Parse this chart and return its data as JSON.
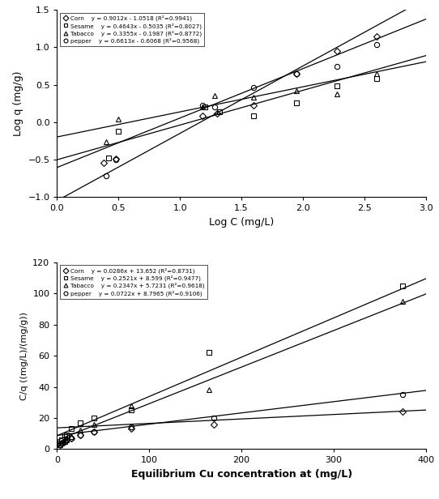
{
  "plot1": {
    "xlabel": "Log C (mg/L)",
    "ylabel": "Log q (mg/g)",
    "xlim": [
      0,
      3
    ],
    "ylim": [
      -1,
      1.5
    ],
    "xticks": [
      0,
      0.5,
      1,
      1.5,
      2,
      2.5,
      3
    ],
    "yticks": [
      -1,
      -0.5,
      0,
      0.5,
      1,
      1.5
    ],
    "series": [
      {
        "name": "Corn",
        "marker": "D",
        "label_eq": "y = 0.9012x - 1.0518 (R²=0.9941)",
        "slope": 0.9012,
        "intercept": -1.0518,
        "x_data": [
          0.38,
          0.48,
          1.18,
          1.3,
          1.6,
          1.95,
          2.28,
          2.6
        ],
        "y_data": [
          -0.55,
          -0.49,
          0.08,
          0.12,
          0.22,
          0.65,
          0.95,
          1.15
        ]
      },
      {
        "name": "Sesame",
        "marker": "s",
        "label_eq": "y = 0.4643x - 0.5035 (R²=0.8027)",
        "slope": 0.4643,
        "intercept": -0.5035,
        "x_data": [
          0.42,
          0.5,
          1.2,
          1.32,
          1.6,
          1.95,
          2.28,
          2.6
        ],
        "y_data": [
          -0.48,
          -0.12,
          0.2,
          0.14,
          0.08,
          0.26,
          0.49,
          0.58
        ]
      },
      {
        "name": "Tabacco",
        "marker": "^",
        "label_eq": "y = 0.3355x - 0.1987 (R²=0.8772)",
        "slope": 0.3355,
        "intercept": -0.1987,
        "x_data": [
          0.4,
          0.5,
          1.18,
          1.28,
          1.6,
          1.95,
          2.28,
          2.6
        ],
        "y_data": [
          -0.26,
          0.04,
          0.2,
          0.35,
          0.33,
          0.42,
          0.38,
          0.65
        ]
      },
      {
        "name": "pepper",
        "marker": "o",
        "label_eq": "y = 0.6613x - 0.6068 (R²=0.9568)",
        "slope": 0.6613,
        "intercept": -0.6068,
        "x_data": [
          0.4,
          0.48,
          1.18,
          1.28,
          1.6,
          1.95,
          2.28,
          2.6
        ],
        "y_data": [
          -0.72,
          -0.5,
          0.22,
          0.2,
          0.46,
          0.65,
          0.75,
          1.04
        ]
      }
    ]
  },
  "plot2": {
    "xlabel": "Equilibrium Cu concentration at (mg/L)",
    "ylabel": "C/q ((mg/L)/(mg/g))",
    "xlim": [
      0,
      400
    ],
    "ylim": [
      0,
      120
    ],
    "xticks": [
      0,
      100,
      200,
      300,
      400
    ],
    "yticks": [
      0,
      20,
      40,
      60,
      80,
      100,
      120
    ],
    "series": [
      {
        "name": "Corn",
        "marker": "D",
        "label_eq": "y = 0.0286x + 13.652 (R²=0.8731)",
        "slope": 0.0286,
        "intercept": 13.652,
        "x_data": [
          3,
          5,
          8,
          10,
          15,
          25,
          40,
          80,
          170,
          375
        ],
        "y_data": [
          3,
          4,
          5,
          6,
          7,
          9,
          11,
          13,
          16,
          24
        ]
      },
      {
        "name": "Sesame",
        "marker": "s",
        "label_eq": "y = 0.2521x + 8.599 (R²=0.9477)",
        "slope": 0.2521,
        "intercept": 8.599,
        "x_data": [
          3,
          5,
          8,
          10,
          15,
          25,
          40,
          80,
          165,
          375
        ],
        "y_data": [
          4,
          6,
          8,
          9,
          13,
          17,
          20,
          25,
          62,
          105
        ]
      },
      {
        "name": "Tabacco",
        "marker": "^",
        "label_eq": "y = 0.2347x + 5.7231 (R²=0.9618)",
        "slope": 0.2347,
        "intercept": 5.7231,
        "x_data": [
          3,
          5,
          8,
          10,
          15,
          25,
          40,
          80,
          165,
          375
        ],
        "y_data": [
          3,
          4,
          5,
          6,
          8,
          12,
          16,
          28,
          38,
          95
        ]
      },
      {
        "name": "pepper",
        "marker": "o",
        "label_eq": "y = 0.0722x + 8.7965 (R²=0.9106)",
        "slope": 0.0722,
        "intercept": 8.7965,
        "x_data": [
          3,
          5,
          8,
          10,
          15,
          25,
          40,
          80,
          170,
          375
        ],
        "y_data": [
          3,
          4,
          5,
          6,
          7,
          9,
          11,
          14,
          20,
          35
        ]
      }
    ]
  }
}
